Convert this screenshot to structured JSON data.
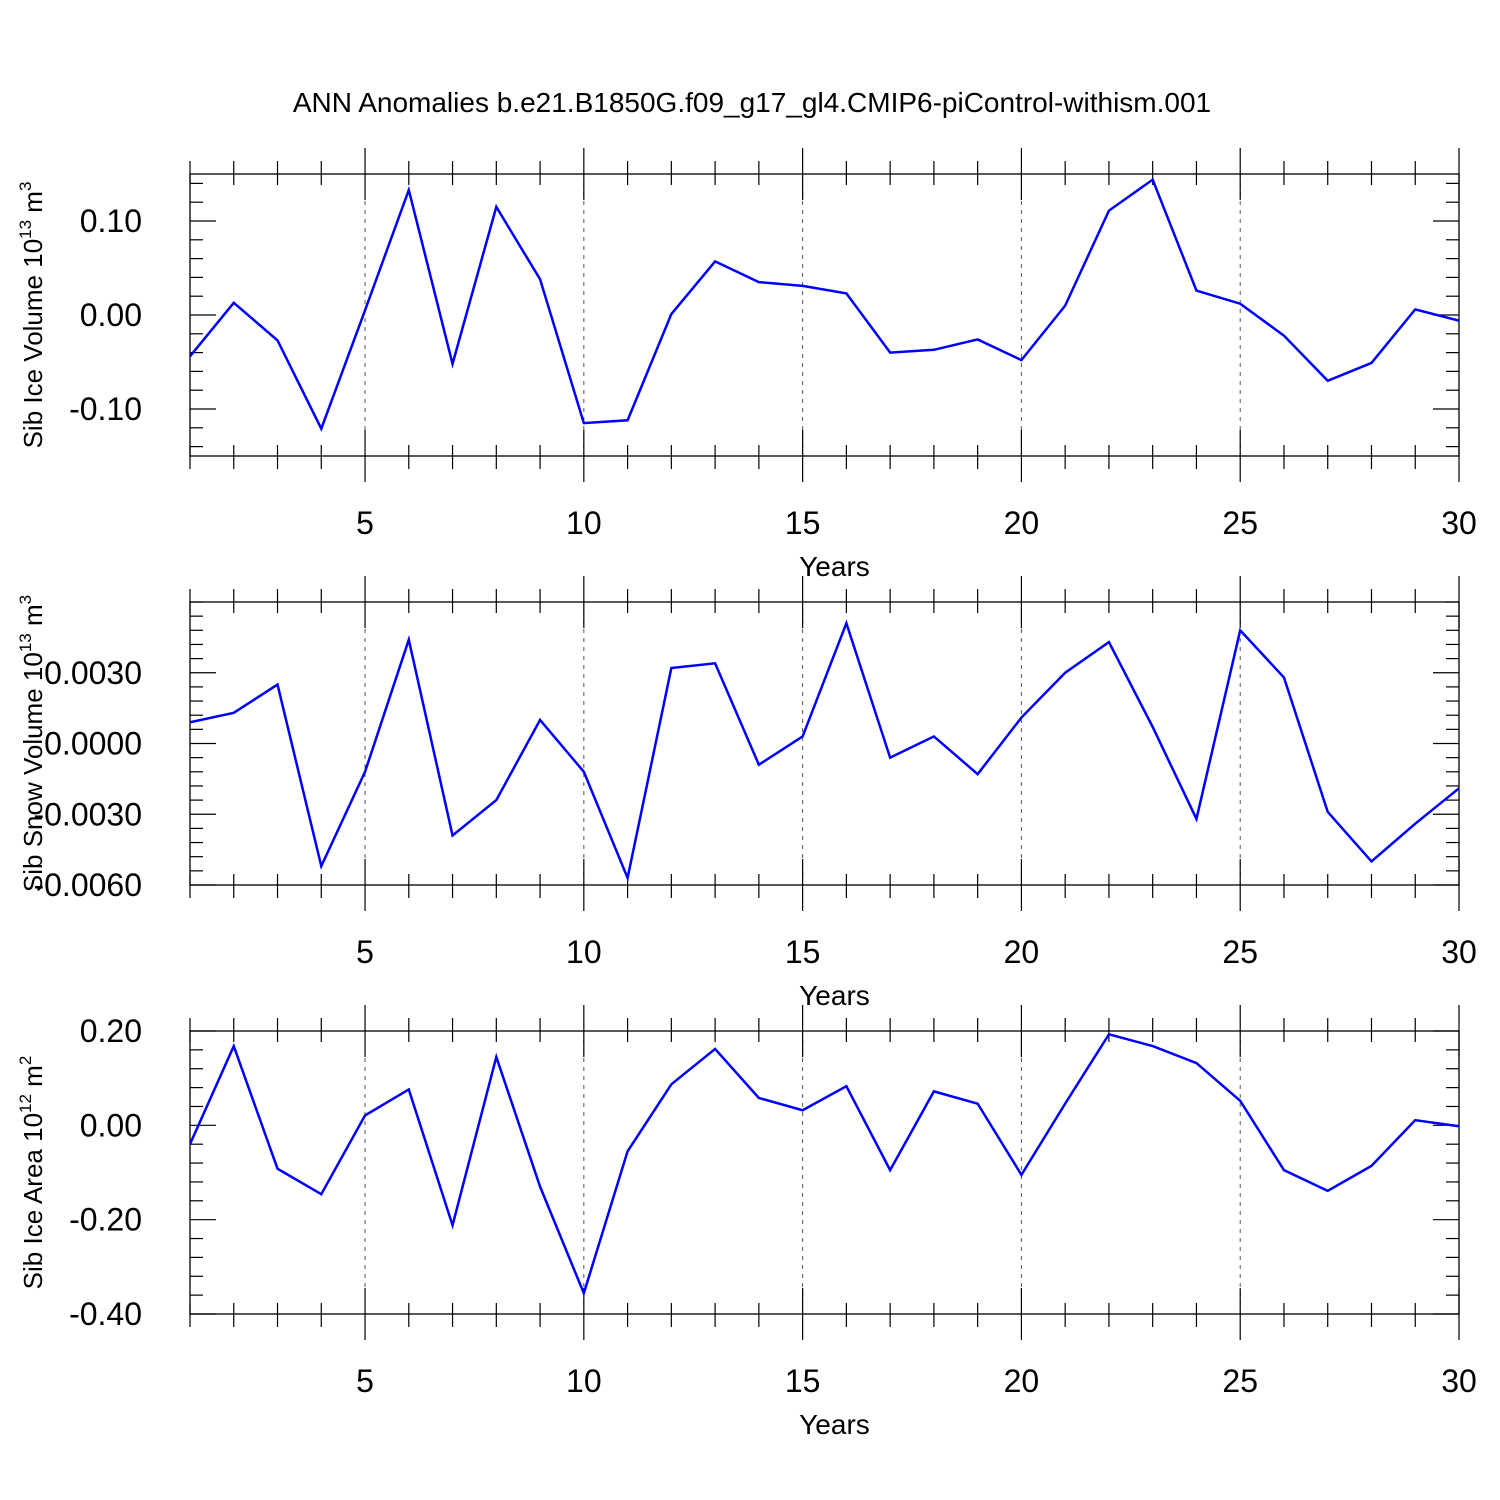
{
  "title": "ANN Anomalies b.e21.B1850G.f09_g17_gl4.CMIP6-piControl-withism.001",
  "colors": {
    "line": "#0000ff",
    "axis": "#000000",
    "grid": "#555555"
  },
  "chart_data": [
    {
      "type": "line",
      "xlabel": "Years",
      "ylabel": {
        "text": "Sib Ice Volume 10",
        "sup1": "13",
        "mid": " m",
        "sup2": "3"
      },
      "xlim": [
        1,
        30
      ],
      "ylim": [
        -0.15,
        0.15
      ],
      "xticks": [
        5,
        10,
        15,
        20,
        25,
        30
      ],
      "yticks": [
        -0.1,
        0.0,
        0.1
      ],
      "ytick_labels": [
        "-0.10",
        "0.00",
        "0.10"
      ],
      "grid": "vertical dashed at major x ticks",
      "x": [
        1,
        2,
        3,
        4,
        5,
        6,
        7,
        8,
        9,
        10,
        11,
        12,
        13,
        14,
        15,
        16,
        17,
        18,
        19,
        20,
        21,
        22,
        23,
        24,
        25,
        26,
        27,
        28,
        29,
        30
      ],
      "series": [
        {
          "values": [
            -0.044,
            0.013,
            -0.027,
            -0.121,
            0.005,
            0.133,
            -0.052,
            0.115,
            0.038,
            -0.115,
            -0.112,
            0.001,
            0.057,
            0.035,
            0.031,
            0.023,
            -0.04,
            -0.037,
            -0.026,
            -0.048,
            0.01,
            0.111,
            0.144,
            0.026,
            0.012,
            -0.022,
            -0.07,
            -0.051,
            0.006,
            -0.006
          ]
        }
      ]
    },
    {
      "type": "line",
      "xlabel": "Years",
      "ylabel": {
        "text": "Sib Snow Volume 10",
        "sup1": "13",
        "mid": " m",
        "sup2": "3"
      },
      "xlim": [
        1,
        30
      ],
      "ylim": [
        -0.006,
        0.006
      ],
      "xticks": [
        5,
        10,
        15,
        20,
        25,
        30
      ],
      "yticks": [
        -0.006,
        -0.003,
        0.0,
        0.003
      ],
      "ytick_labels": [
        "-0.0060",
        "-0.0030",
        "0.0000",
        "0.0030"
      ],
      "grid": "vertical dashed at major x ticks",
      "x": [
        1,
        2,
        3,
        4,
        5,
        6,
        7,
        8,
        9,
        10,
        11,
        12,
        13,
        14,
        15,
        16,
        17,
        18,
        19,
        20,
        21,
        22,
        23,
        24,
        25,
        26,
        27,
        28,
        29,
        30
      ],
      "series": [
        {
          "values": [
            0.0009,
            0.0013,
            0.0025,
            -0.0052,
            -0.0012,
            0.0044,
            -0.0039,
            -0.0024,
            0.001,
            -0.0012,
            -0.0057,
            0.0032,
            0.0034,
            -0.0009,
            0.0003,
            0.0051,
            -0.0006,
            0.0003,
            -0.0013,
            0.0011,
            0.003,
            0.0043,
            0.0007,
            -0.0032,
            0.0048,
            0.0028,
            -0.0029,
            -0.005,
            -0.0034,
            -0.0019
          ]
        }
      ]
    },
    {
      "type": "line",
      "xlabel": "Years",
      "ylabel": {
        "text": "Sib Ice Area 10",
        "sup1": "12",
        "mid": " m",
        "sup2": "2"
      },
      "xlim": [
        1,
        30
      ],
      "ylim": [
        -0.4,
        0.2
      ],
      "xticks": [
        5,
        10,
        15,
        20,
        25,
        30
      ],
      "yticks": [
        -0.4,
        -0.2,
        0.0,
        0.2
      ],
      "ytick_labels": [
        "-0.40",
        "-0.20",
        "0.00",
        "0.20"
      ],
      "grid": "vertical dashed at major x ticks",
      "x": [
        1,
        2,
        3,
        4,
        5,
        6,
        7,
        8,
        9,
        10,
        11,
        12,
        13,
        14,
        15,
        16,
        17,
        18,
        19,
        20,
        21,
        22,
        23,
        24,
        25,
        26,
        27,
        28,
        29,
        30
      ],
      "series": [
        {
          "values": [
            -0.04,
            0.168,
            -0.092,
            -0.146,
            0.021,
            0.076,
            -0.212,
            0.145,
            -0.13,
            -0.356,
            -0.055,
            0.087,
            0.162,
            0.058,
            0.032,
            0.083,
            -0.095,
            0.072,
            0.046,
            -0.105,
            0.046,
            0.193,
            0.168,
            0.132,
            0.052,
            -0.095,
            -0.139,
            -0.086,
            0.011,
            -0.002
          ]
        }
      ]
    }
  ]
}
